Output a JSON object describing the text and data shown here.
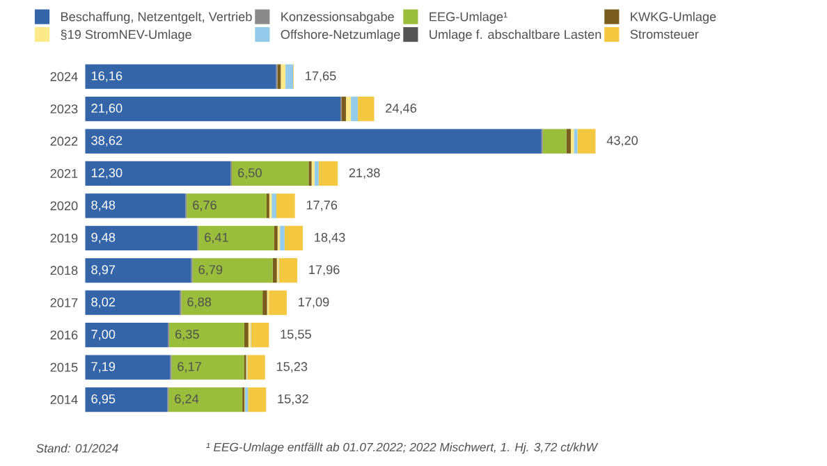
{
  "chart_data": {
    "type": "bar",
    "orientation": "horizontal",
    "stacked": true,
    "legend": "top",
    "categories": [
      "2024",
      "2023",
      "2022",
      "2021",
      "2020",
      "2019",
      "2018",
      "2017",
      "2016",
      "2015",
      "2014"
    ],
    "series": [
      {
        "name": "Beschaffung, Netzentgelt, Vertrieb",
        "color": "#3465a8",
        "values": [
          16.16,
          21.6,
          38.62,
          12.3,
          8.48,
          9.48,
          8.97,
          8.02,
          7.0,
          7.19,
          6.95
        ],
        "value_labels": [
          "16,16",
          "21,60",
          "38,62",
          "12,30",
          "8,48",
          "9,48",
          "8,97",
          "8,02",
          "7,00",
          "7,19",
          "6,95"
        ]
      },
      {
        "name": "Konzessionsabgabe",
        "color": "#8a8a8a",
        "values": [
          0.11,
          0.11,
          0.11,
          0.11,
          0.11,
          0.11,
          0.11,
          0.11,
          0.11,
          0.11,
          0.11
        ]
      },
      {
        "name": "EEG-Umlage¹",
        "color": "#9bbd3c",
        "values": [
          0,
          0,
          2.0,
          6.5,
          6.76,
          6.41,
          6.79,
          6.88,
          6.35,
          6.17,
          6.24
        ],
        "value_labels": [
          null,
          null,
          null,
          "6,50",
          "6,76",
          "6,41",
          "6,79",
          "6,88",
          "6,35",
          "6,17",
          "6,24"
        ]
      },
      {
        "name": "KWKG-Umlage",
        "color": "#7a5c1e",
        "values": [
          0.28,
          0.36,
          0.38,
          0.25,
          0.23,
          0.28,
          0.35,
          0.38,
          0.35,
          0.15,
          0.18
        ]
      },
      {
        "name": "§19 StromNEV-Umlage",
        "color": "#fbe98a",
        "values": [
          0.4,
          0.42,
          0.26,
          0.25,
          0.2,
          0.2,
          0.15,
          0.15,
          0.18,
          0.05,
          0.05
        ]
      },
      {
        "name": "Offshore-Netzumlage",
        "color": "#94cbea",
        "values": [
          0.65,
          0.59,
          0.3,
          0.35,
          0.4,
          0.4,
          0.04,
          null,
          0.04,
          0.05,
          0.25
        ]
      },
      {
        "name": "Umlage f. abschaltbare Lasten",
        "color": "#555555",
        "values": [
          null,
          null,
          null,
          null,
          null,
          null,
          null,
          null,
          null,
          null,
          null
        ]
      },
      {
        "name": "Stromsteuer",
        "color": "#f5c842",
        "values": [
          0.05,
          1.38,
          1.53,
          1.61,
          1.57,
          1.54,
          1.54,
          1.52,
          1.52,
          1.5,
          1.53
        ]
      }
    ],
    "totals": [
      "17,65",
      "24,46",
      "43,20",
      "21,38",
      "17,76",
      "18,43",
      "17,96",
      "17,09",
      "15,55",
      "15,23",
      "15,32"
    ],
    "annotations": [
      "Stand: 01/2024",
      "¹ EEG-Umlage entfällt ab 01.07.2022; 2022 Mischwert, 1. Hj. 3,72 ct/khW"
    ]
  }
}
